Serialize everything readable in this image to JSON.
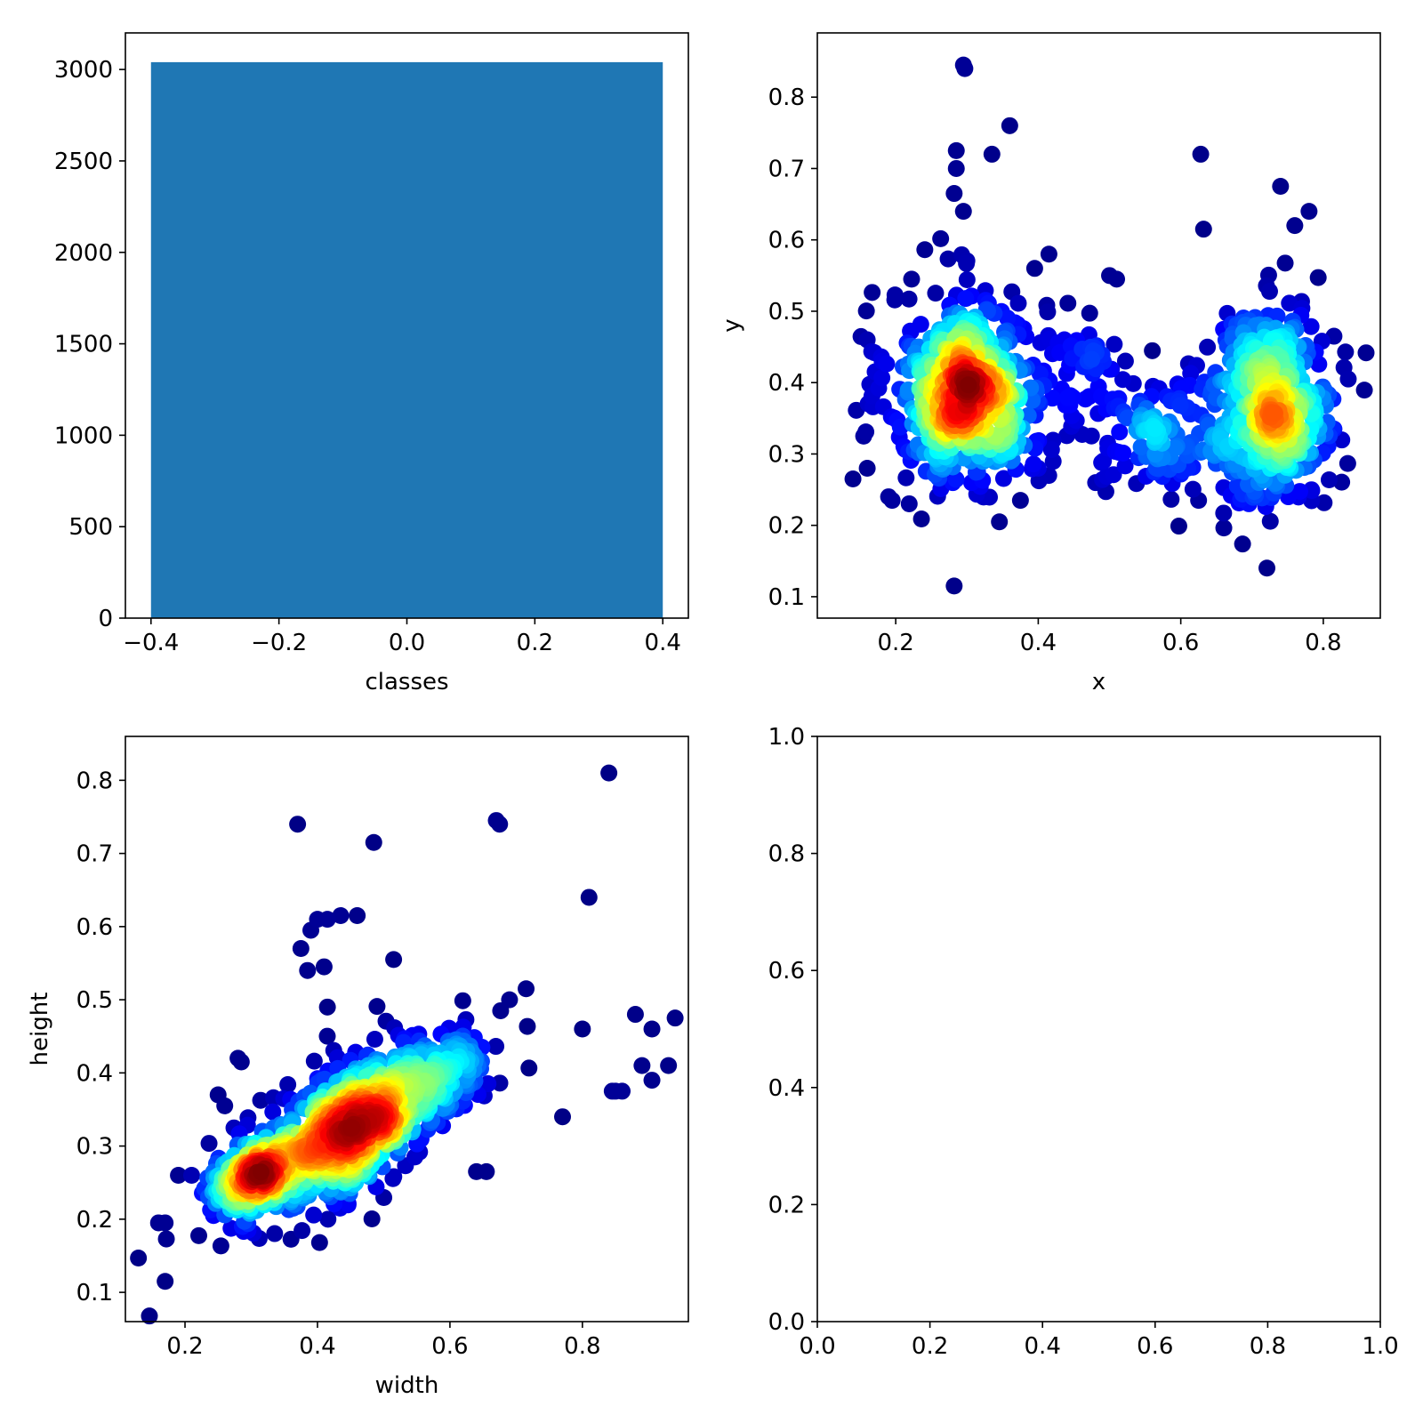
{
  "chart_data": [
    {
      "type": "bar",
      "xlabel": "classes",
      "ylabel": "",
      "xlim": [
        -0.44,
        0.44
      ],
      "ylim": [
        0,
        3200
      ],
      "xticks": [
        "−0.4",
        "−0.2",
        "0.0",
        "0.2",
        "0.4"
      ],
      "yticks": [
        "0",
        "500",
        "1000",
        "1500",
        "2000",
        "2500",
        "3000"
      ],
      "bar_color": "#1f77b4",
      "bars": [
        {
          "x": 0,
          "width": 0.8,
          "value": 3040
        }
      ]
    },
    {
      "type": "scatter",
      "xlabel": "x",
      "ylabel": "y",
      "xlim": [
        0.09,
        0.88
      ],
      "ylim": [
        0.07,
        0.89
      ],
      "xticks": [
        "0.2",
        "0.4",
        "0.6",
        "0.8"
      ],
      "yticks": [
        "0.1",
        "0.2",
        "0.3",
        "0.4",
        "0.5",
        "0.6",
        "0.7",
        "0.8"
      ],
      "colormap": "jet",
      "note_density": "points colored by local density",
      "clusters": [
        {
          "cx": 0.3,
          "cy": 0.39,
          "sx": 0.055,
          "sy": 0.07,
          "n": 520
        },
        {
          "cx": 0.73,
          "cy": 0.37,
          "sx": 0.045,
          "sy": 0.07,
          "n": 380
        },
        {
          "cx": 0.58,
          "cy": 0.32,
          "sx": 0.045,
          "sy": 0.045,
          "n": 120
        },
        {
          "cx": 0.47,
          "cy": 0.4,
          "sx": 0.035,
          "sy": 0.05,
          "n": 60
        }
      ],
      "outliers": [
        [
          0.295,
          0.845
        ],
        [
          0.297,
          0.84
        ],
        [
          0.36,
          0.76
        ],
        [
          0.282,
          0.115
        ],
        [
          0.628,
          0.72
        ],
        [
          0.285,
          0.725
        ],
        [
          0.285,
          0.7
        ],
        [
          0.335,
          0.72
        ],
        [
          0.282,
          0.665
        ],
        [
          0.295,
          0.64
        ],
        [
          0.632,
          0.615
        ],
        [
          0.74,
          0.675
        ],
        [
          0.78,
          0.64
        ],
        [
          0.76,
          0.62
        ],
        [
          0.14,
          0.265
        ],
        [
          0.16,
          0.28
        ],
        [
          0.155,
          0.325
        ],
        [
          0.195,
          0.235
        ],
        [
          0.19,
          0.24
        ],
        [
          0.835,
          0.405
        ],
        [
          0.815,
          0.465
        ],
        [
          0.815,
          0.335
        ],
        [
          0.415,
          0.58
        ],
        [
          0.395,
          0.56
        ],
        [
          0.5,
          0.55
        ],
        [
          0.51,
          0.545
        ],
        [
          0.16,
          0.46
        ],
        [
          0.375,
          0.235
        ],
        [
          0.625,
          0.235
        ],
        [
          0.4,
          0.28
        ]
      ]
    },
    {
      "type": "scatter",
      "xlabel": "width",
      "ylabel": "height",
      "xlim": [
        0.11,
        0.96
      ],
      "ylim": [
        0.06,
        0.86
      ],
      "xticks": [
        "0.2",
        "0.4",
        "0.6",
        "0.8"
      ],
      "yticks": [
        "0.1",
        "0.2",
        "0.3",
        "0.4",
        "0.5",
        "0.6",
        "0.7",
        "0.8"
      ],
      "colormap": "jet",
      "trend": {
        "intercept": 0.13,
        "slope": 0.43
      },
      "clusters": [
        {
          "cx": 0.44,
          "cy": 0.32,
          "sx": 0.075,
          "sy": 0.05,
          "n": 650
        },
        {
          "cx": 0.3,
          "cy": 0.255,
          "sx": 0.04,
          "sy": 0.03,
          "n": 180
        },
        {
          "cx": 0.56,
          "cy": 0.38,
          "sx": 0.06,
          "sy": 0.04,
          "n": 170
        }
      ],
      "outliers": [
        [
          0.84,
          0.81
        ],
        [
          0.37,
          0.74
        ],
        [
          0.67,
          0.745
        ],
        [
          0.675,
          0.74
        ],
        [
          0.485,
          0.715
        ],
        [
          0.81,
          0.64
        ],
        [
          0.4,
          0.61
        ],
        [
          0.415,
          0.61
        ],
        [
          0.435,
          0.615
        ],
        [
          0.46,
          0.615
        ],
        [
          0.39,
          0.595
        ],
        [
          0.375,
          0.57
        ],
        [
          0.385,
          0.54
        ],
        [
          0.41,
          0.545
        ],
        [
          0.515,
          0.555
        ],
        [
          0.415,
          0.49
        ],
        [
          0.17,
          0.115
        ],
        [
          0.16,
          0.195
        ],
        [
          0.17,
          0.195
        ],
        [
          0.94,
          0.475
        ],
        [
          0.88,
          0.48
        ],
        [
          0.905,
          0.46
        ],
        [
          0.93,
          0.41
        ],
        [
          0.89,
          0.41
        ],
        [
          0.905,
          0.39
        ],
        [
          0.85,
          0.375
        ],
        [
          0.77,
          0.34
        ],
        [
          0.64,
          0.265
        ],
        [
          0.655,
          0.265
        ],
        [
          0.715,
          0.515
        ],
        [
          0.69,
          0.5
        ],
        [
          0.28,
          0.42
        ],
        [
          0.285,
          0.415
        ],
        [
          0.25,
          0.37
        ],
        [
          0.26,
          0.355
        ],
        [
          0.19,
          0.26
        ],
        [
          0.21,
          0.26
        ],
        [
          0.845,
          0.375
        ],
        [
          0.86,
          0.375
        ],
        [
          0.8,
          0.46
        ]
      ]
    },
    {
      "type": "empty",
      "xlabel": "",
      "ylabel": "",
      "xlim": [
        0,
        1
      ],
      "ylim": [
        0,
        1
      ],
      "xticks": [
        "0.0",
        "0.2",
        "0.4",
        "0.6",
        "0.8",
        "1.0"
      ],
      "yticks": [
        "0.0",
        "0.2",
        "0.4",
        "0.6",
        "0.8",
        "1.0"
      ]
    }
  ]
}
